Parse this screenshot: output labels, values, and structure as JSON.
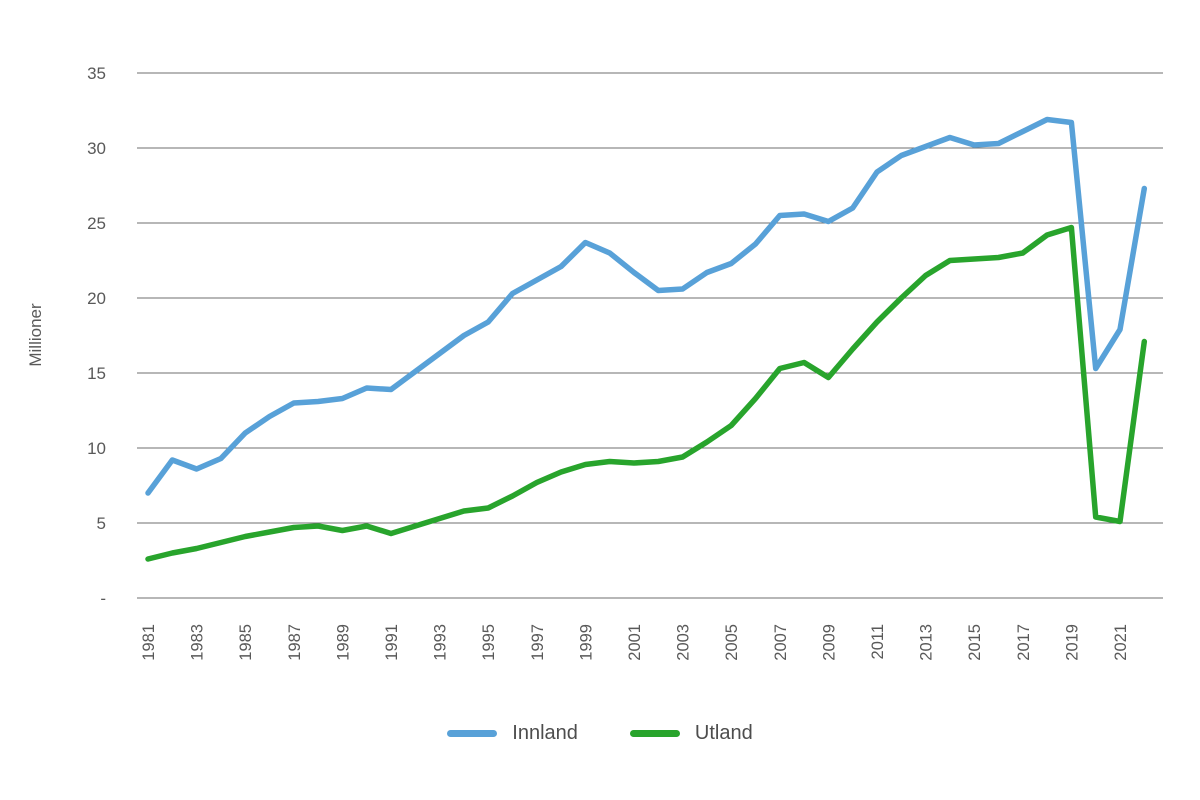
{
  "chart_data": {
    "type": "line",
    "title": "",
    "ylabel": "Millioner",
    "ylim": [
      0,
      35
    ],
    "grid": true,
    "legend_position": "bottom",
    "x": [
      1981,
      1982,
      1983,
      1984,
      1985,
      1986,
      1987,
      1988,
      1989,
      1990,
      1991,
      1992,
      1993,
      1994,
      1995,
      1996,
      1997,
      1998,
      1999,
      2000,
      2001,
      2002,
      2003,
      2004,
      2005,
      2006,
      2007,
      2008,
      2009,
      2010,
      2011,
      2012,
      2013,
      2014,
      2015,
      2016,
      2017,
      2018,
      2019,
      2020,
      2021,
      2022
    ],
    "xtick_labels": [
      "1981",
      "1983",
      "1985",
      "1987",
      "1989",
      "1991",
      "1993",
      "1995",
      "1997",
      "1999",
      "2001",
      "2003",
      "2005",
      "2007",
      "2009",
      "2011",
      "2013",
      "2015",
      "2017",
      "2019",
      "2021"
    ],
    "ytick_values": [
      0,
      5,
      10,
      15,
      20,
      25,
      30,
      35
    ],
    "ytick_labels": [
      "-",
      "5",
      "10",
      "15",
      "20",
      "25",
      "30",
      "35"
    ],
    "series": [
      {
        "name": "Innland",
        "color": "#58A1D8",
        "values": [
          7.0,
          9.2,
          8.6,
          9.3,
          11.0,
          12.1,
          13.0,
          13.1,
          13.3,
          14.0,
          13.9,
          15.1,
          16.3,
          17.5,
          18.4,
          20.3,
          21.2,
          22.1,
          23.7,
          23.0,
          21.7,
          20.5,
          20.6,
          21.7,
          22.3,
          23.6,
          25.5,
          25.6,
          25.1,
          26.0,
          28.4,
          29.5,
          30.1,
          30.7,
          30.2,
          30.3,
          31.1,
          31.9,
          31.7,
          15.3,
          17.9,
          27.3
        ]
      },
      {
        "name": "Utland",
        "color": "#28A42C",
        "values": [
          2.6,
          3.0,
          3.3,
          3.7,
          4.1,
          4.4,
          4.7,
          4.8,
          4.5,
          4.8,
          4.3,
          4.8,
          5.3,
          5.8,
          6.0,
          6.8,
          7.7,
          8.4,
          8.9,
          9.1,
          9.0,
          9.1,
          9.4,
          10.4,
          11.5,
          13.3,
          15.3,
          15.7,
          14.7,
          16.6,
          18.4,
          20.0,
          21.5,
          22.5,
          22.6,
          22.7,
          23.0,
          24.2,
          24.7,
          5.4,
          5.1,
          17.1
        ]
      }
    ],
    "axis_text_color": "#595959",
    "gridline_color": "#6f6f6f",
    "legend_text_color": "#4d4d4d"
  }
}
